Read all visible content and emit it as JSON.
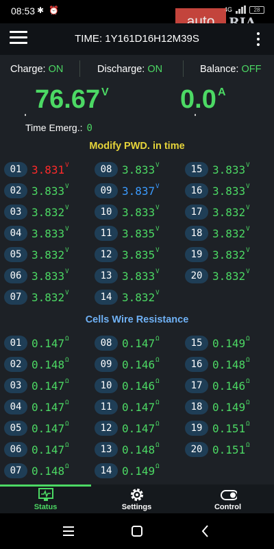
{
  "status_bar": {
    "time": "08:53",
    "icons": [
      "bluetooth-icon",
      "alarm-icon"
    ],
    "network": "4G",
    "battery": "28"
  },
  "watermark": {
    "left": "auto",
    "right": "RIA"
  },
  "app_bar": {
    "title": "TIME: 1Y161D16H12M39S"
  },
  "toggles": {
    "charge": {
      "label": "Charge:",
      "value": "ON"
    },
    "discharge": {
      "label": "Discharge:",
      "value": "ON"
    },
    "balance": {
      "label": "Balance:",
      "value": "OFF"
    }
  },
  "readings": {
    "voltage": "76.67",
    "voltage_unit": "V",
    "current": "0.0",
    "current_unit": "A"
  },
  "time_emerg": {
    "label": "Time Emerg.:",
    "value": "0"
  },
  "voltage_section": {
    "title": "Modify PWD. in time",
    "title_color": "#e6d43a",
    "unit": "V",
    "cells": [
      {
        "id": "01",
        "value": "3.831",
        "status": "min"
      },
      {
        "id": "02",
        "value": "3.833"
      },
      {
        "id": "03",
        "value": "3.832"
      },
      {
        "id": "04",
        "value": "3.833"
      },
      {
        "id": "05",
        "value": "3.832"
      },
      {
        "id": "06",
        "value": "3.833"
      },
      {
        "id": "07",
        "value": "3.832"
      },
      {
        "id": "08",
        "value": "3.833"
      },
      {
        "id": "09",
        "value": "3.837",
        "status": "max"
      },
      {
        "id": "10",
        "value": "3.833"
      },
      {
        "id": "11",
        "value": "3.835"
      },
      {
        "id": "12",
        "value": "3.835"
      },
      {
        "id": "13",
        "value": "3.833"
      },
      {
        "id": "14",
        "value": "3.832"
      },
      {
        "id": "15",
        "value": "3.833"
      },
      {
        "id": "16",
        "value": "3.833"
      },
      {
        "id": "17",
        "value": "3.832"
      },
      {
        "id": "18",
        "value": "3.832"
      },
      {
        "id": "19",
        "value": "3.832"
      },
      {
        "id": "20",
        "value": "3.832"
      }
    ]
  },
  "resistance_section": {
    "title": "Cells Wire Resistance",
    "title_color": "#6fb1f5",
    "unit": "Ω",
    "cells": [
      {
        "id": "01",
        "value": "0.147"
      },
      {
        "id": "02",
        "value": "0.148"
      },
      {
        "id": "03",
        "value": "0.147"
      },
      {
        "id": "04",
        "value": "0.147"
      },
      {
        "id": "05",
        "value": "0.147"
      },
      {
        "id": "06",
        "value": "0.147"
      },
      {
        "id": "07",
        "value": "0.148"
      },
      {
        "id": "08",
        "value": "0.147"
      },
      {
        "id": "09",
        "value": "0.146"
      },
      {
        "id": "10",
        "value": "0.146"
      },
      {
        "id": "11",
        "value": "0.147"
      },
      {
        "id": "12",
        "value": "0.147"
      },
      {
        "id": "13",
        "value": "0.148"
      },
      {
        "id": "14",
        "value": "0.149"
      },
      {
        "id": "15",
        "value": "0.149"
      },
      {
        "id": "16",
        "value": "0.148"
      },
      {
        "id": "17",
        "value": "0.146"
      },
      {
        "id": "18",
        "value": "0.149"
      },
      {
        "id": "19",
        "value": "0.151"
      },
      {
        "id": "20",
        "value": "0.151"
      }
    ]
  },
  "colors": {
    "value_green": "#4cd964",
    "min_red": "#ff2a2a",
    "max_blue": "#3b9bff",
    "badge_bg": "#1f3e56",
    "content_bg": "#1d2126",
    "active_tab": "#4cd964"
  },
  "tabs": [
    {
      "label": "Status",
      "icon": "monitor-icon",
      "active": true
    },
    {
      "label": "Settings",
      "icon": "gear-icon",
      "active": false
    },
    {
      "label": "Control",
      "icon": "toggle-icon",
      "active": false
    }
  ],
  "nav": [
    "menu-nav-icon",
    "home-nav-icon",
    "back-nav-icon"
  ]
}
